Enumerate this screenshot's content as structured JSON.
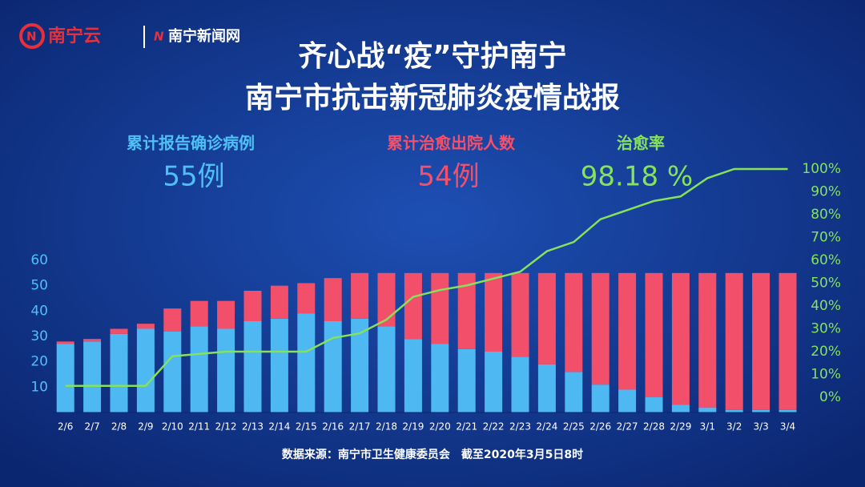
{
  "header": {
    "logo_left": "南宁云",
    "logo_right": "南宁新闻网"
  },
  "stats": [
    {
      "label": "累计报告确诊病例",
      "value": "55例"
    },
    {
      "label": "累计治愈出院人数",
      "value": "54例"
    },
    {
      "label": "治愈率",
      "value": "98.18 %"
    }
  ],
  "footer": "数据来源：南宁市卫生健康委员会　截至2020年3月5日8时",
  "chart_data": {
    "type": "bar",
    "title": [
      "齐心战“疫”守护南宁",
      "南宁市抗击新冠肺炎疫情战报"
    ],
    "stacked": true,
    "categories": [
      "2/6",
      "2/7",
      "2/8",
      "2/9",
      "2/10",
      "2/11",
      "2/12",
      "2/13",
      "2/14",
      "2/15",
      "2/16",
      "2/17",
      "2/18",
      "2/19",
      "2/20",
      "2/21",
      "2/22",
      "2/23",
      "2/24",
      "2/25",
      "2/26",
      "2/27",
      "2/28",
      "2/29",
      "3/1",
      "3/2",
      "3/3",
      "3/4"
    ],
    "series": [
      {
        "type": "bar",
        "color": "#4db8f2",
        "values": [
          27,
          28,
          31,
          33,
          32,
          34,
          33,
          36,
          37,
          39,
          36,
          37,
          34,
          29,
          27,
          25,
          24,
          22,
          19,
          16,
          11,
          9,
          6,
          3,
          2,
          1,
          1,
          1
        ]
      },
      {
        "type": "bar",
        "color": "#f2506a",
        "values": [
          1,
          1,
          2,
          2,
          9,
          10,
          11,
          12,
          13,
          12,
          17,
          18,
          21,
          26,
          28,
          30,
          31,
          33,
          36,
          39,
          44,
          46,
          49,
          52,
          53,
          54,
          54,
          54
        ]
      },
      {
        "type": "line",
        "axis": "y2",
        "color": "#86e25a",
        "values": [
          5,
          5,
          5,
          5,
          18,
          19,
          20,
          20,
          20,
          20,
          26,
          28,
          34,
          44,
          47,
          49,
          52,
          55,
          64,
          68,
          78,
          82,
          86,
          88,
          96,
          100,
          100,
          100
        ]
      }
    ],
    "ylim": [
      0,
      60
    ],
    "yticks": [
      10,
      20,
      30,
      40,
      50,
      60
    ],
    "y2lim": [
      0,
      100
    ],
    "y2ticks": [
      {
        "value": 0,
        "label": "0%"
      },
      {
        "value": 10,
        "label": "10%"
      },
      {
        "value": 20,
        "label": "20%"
      },
      {
        "value": 30,
        "label": "30%"
      },
      {
        "value": 40,
        "label": "40%"
      },
      {
        "value": 50,
        "label": "50%"
      },
      {
        "value": 60,
        "label": "60%"
      },
      {
        "value": 70,
        "label": "70%"
      },
      {
        "value": 80,
        "label": "80%"
      },
      {
        "value": 90,
        "label": "90%"
      },
      {
        "value": 100,
        "label": "100%"
      }
    ]
  }
}
